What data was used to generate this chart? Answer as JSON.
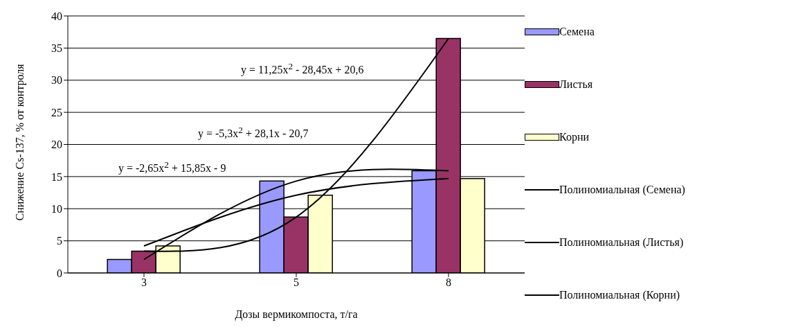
{
  "chart_data": {
    "type": "bar",
    "xlabel": "Дозы вермикомпоста, т/га",
    "ylabel": "Снижение Cs-137, % от контроля",
    "categories": [
      "3",
      "5",
      "8"
    ],
    "ylim": [
      0,
      40
    ],
    "yticks": [
      0,
      5,
      10,
      15,
      20,
      25,
      30,
      35,
      40
    ],
    "grid": "y",
    "legend": "right",
    "series": [
      {
        "name": "Семена",
        "color": "#9999ff",
        "values": [
          2.1,
          14.3,
          15.9
        ]
      },
      {
        "name": "Листья",
        "color": "#993366",
        "values": [
          3.4,
          8.7,
          36.5
        ]
      },
      {
        "name": "Корни",
        "color": "#ffffcc",
        "values": [
          4.2,
          12.1,
          14.7
        ]
      },
      {
        "name": "Полиномиальная (Семена)",
        "type": "line",
        "color": "#000000",
        "values": [
          2.1,
          14.3,
          15.9
        ]
      },
      {
        "name": "Полиномиальная (Листья)",
        "type": "line",
        "color": "#000000",
        "values": [
          3.4,
          8.7,
          36.5
        ]
      },
      {
        "name": "Полиномиальная (Корни)",
        "type": "line",
        "color": "#000000",
        "values": [
          4.2,
          12.1,
          14.7
        ]
      }
    ],
    "annotations": [
      "y = 11,25x$^{2}$ - 28,45x + 20,6",
      "y = -5,3x$^{2}$ + 28,1x - 20,7",
      "y = -2,65x$^{2}$ + 15,85x - 9"
    ]
  }
}
